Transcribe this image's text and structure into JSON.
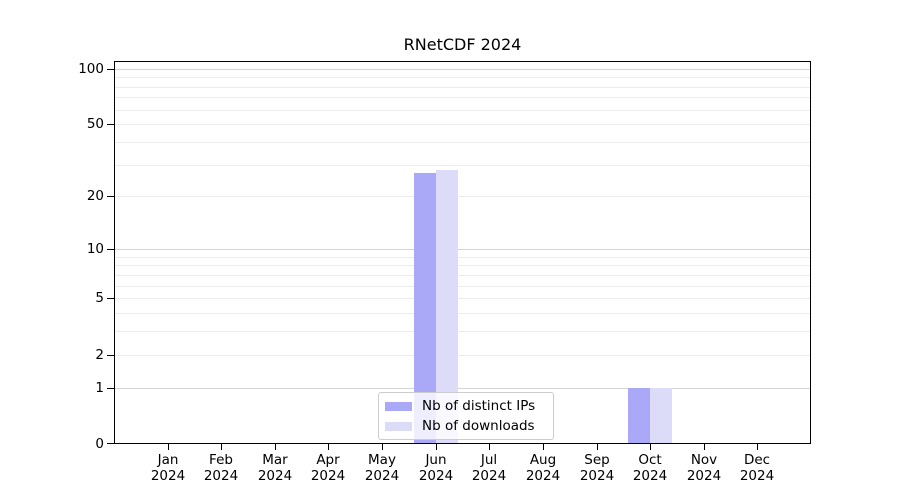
{
  "title": "RNetCDF 2024",
  "chart_data": {
    "type": "bar",
    "title": "RNetCDF 2024",
    "months": [
      "Jan",
      "Feb",
      "Mar",
      "Apr",
      "May",
      "Jun",
      "Jul",
      "Aug",
      "Sep",
      "Oct",
      "Nov",
      "Dec"
    ],
    "year": "2024",
    "categories": [
      "Jan 2024",
      "Feb 2024",
      "Mar 2024",
      "Apr 2024",
      "May 2024",
      "Jun 2024",
      "Jul 2024",
      "Aug 2024",
      "Sep 2024",
      "Oct 2024",
      "Nov 2024",
      "Dec 2024"
    ],
    "series": [
      {
        "name": "Nb of distinct IPs",
        "color": "#a9a9f7",
        "values": [
          0,
          0,
          0,
          0,
          0,
          27,
          0,
          0,
          0,
          1,
          0,
          0
        ]
      },
      {
        "name": "Nb of downloads",
        "color": "#dcdcf9",
        "values": [
          0,
          0,
          0,
          0,
          0,
          28,
          0,
          0,
          0,
          1,
          0,
          0
        ]
      }
    ],
    "y_axis": {
      "scale": "log1p",
      "ticks": [
        0,
        1,
        2,
        5,
        10,
        20,
        50,
        100
      ],
      "max": 110,
      "minor_gridlines": [
        2,
        3,
        4,
        5,
        6,
        7,
        8,
        9,
        20,
        30,
        40,
        50,
        60,
        70,
        80,
        90
      ],
      "major_gridlines": [
        1,
        10,
        100
      ]
    },
    "grid": "horizontal",
    "legend_position": "bottom-center",
    "colors": {
      "minor_grid": "#ececec",
      "major_grid": "#d4d4d4",
      "axis": "#000000",
      "legend_border": "#cccccc"
    }
  }
}
